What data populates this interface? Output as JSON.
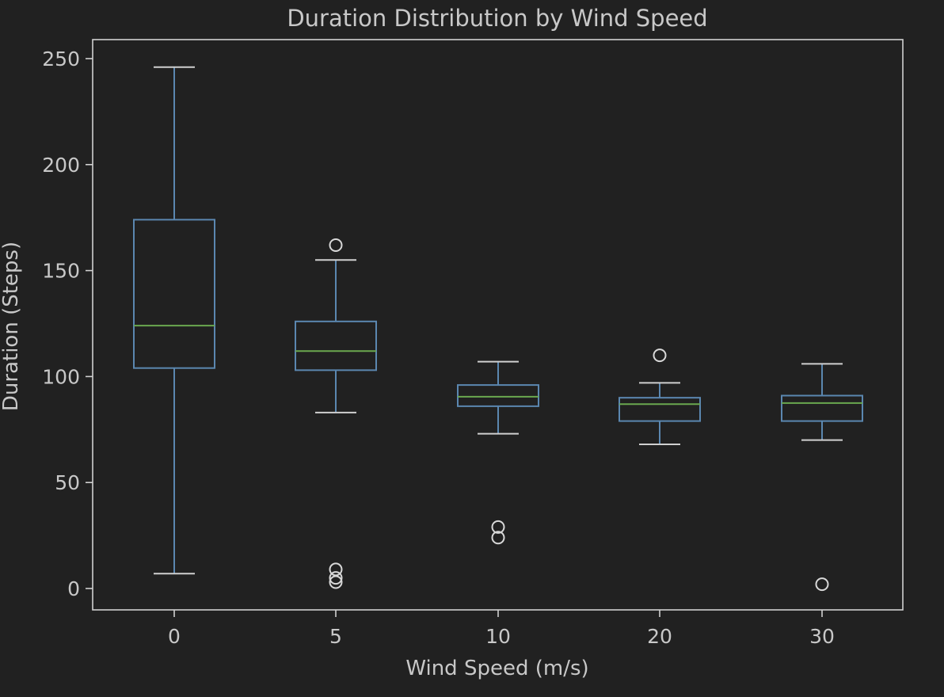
{
  "chart_data": {
    "type": "box",
    "title": "Duration Distribution by Wind Speed",
    "xlabel": "Wind Speed (m/s)",
    "ylabel": "Duration (Steps)",
    "ylim": [
      -10,
      260
    ],
    "yticks": [
      0,
      50,
      100,
      150,
      200,
      250
    ],
    "grid": false,
    "categories": [
      "0",
      "5",
      "10",
      "20",
      "30"
    ],
    "boxes": [
      {
        "category": "0",
        "whisker_low": 7,
        "q1": 104,
        "median": 124,
        "q3": 174,
        "whisker_high": 246,
        "outliers": []
      },
      {
        "category": "5",
        "whisker_low": 83,
        "q1": 103,
        "median": 112,
        "q3": 126,
        "whisker_high": 155,
        "outliers": [
          162,
          9,
          5,
          3
        ]
      },
      {
        "category": "10",
        "whisker_low": 73,
        "q1": 86,
        "median": 90.5,
        "q3": 96,
        "whisker_high": 107,
        "outliers": [
          29,
          24
        ]
      },
      {
        "category": "20",
        "whisker_low": 68,
        "q1": 79,
        "median": 87,
        "q3": 90,
        "whisker_high": 97,
        "outliers": [
          110
        ]
      },
      {
        "category": "30",
        "whisker_low": 70,
        "q1": 79,
        "median": 87.5,
        "q3": 91,
        "whisker_high": 106,
        "outliers": [
          2
        ]
      }
    ],
    "colors": {
      "background": "#212121",
      "box": "#5b87b0",
      "median": "#6aa84f",
      "text": "#c8c8c8",
      "axes": "#d0d0d0",
      "outlier": "#d8d8d8"
    }
  }
}
